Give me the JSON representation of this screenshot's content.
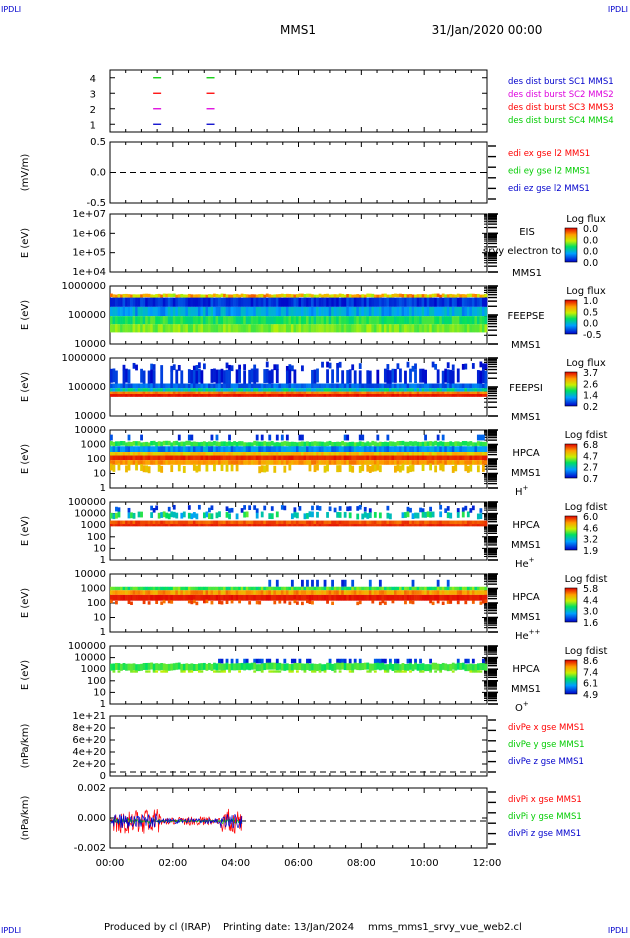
{
  "header": {
    "corner_label": "IPDLI",
    "mission": "MMS1",
    "date": "31/Jan/2020 00:00"
  },
  "footer": {
    "produced_by": "Produced by cl (IRAP)",
    "printing_date": "Printing date: 13/Jan/2024",
    "filename": "mms_mms1_srvy_vue_web2.cl"
  },
  "time_axis": {
    "ticks": [
      "00:00",
      "02:00",
      "04:00",
      "06:00",
      "08:00",
      "10:00",
      "12:00"
    ],
    "range_hours": [
      0,
      12
    ]
  },
  "colors": {
    "red": "#ff0000",
    "green": "#00cc00",
    "blue": "#0000cc",
    "magenta": "#dd00dd"
  },
  "chart_data": [
    {
      "id": "des-dist-burst",
      "type": "scatter",
      "ylim": [
        0.5,
        4.5
      ],
      "yticks": [
        "4",
        "3",
        "2",
        "1"
      ],
      "ylabel": "",
      "legend": [
        {
          "text": "des dist burst SC1 MMS1",
          "color": "#0000cc"
        },
        {
          "text": "des dist burst SC2 MMS2",
          "color": "#dd00dd"
        },
        {
          "text": "des dist burst SC3 MMS3",
          "color": "#ff0000"
        },
        {
          "text": "des dist burst SC4 MMS4",
          "color": "#00cc00"
        }
      ],
      "series": [
        {
          "y": 4,
          "color": "#00cc00",
          "x": [
            1.5,
            3.2
          ]
        },
        {
          "y": 3,
          "color": "#ff0000",
          "x": [
            1.5,
            3.2
          ]
        },
        {
          "y": 2,
          "color": "#dd00dd",
          "x": [
            1.5,
            3.2
          ]
        },
        {
          "y": 1,
          "color": "#0000cc",
          "x": [
            1.5,
            3.2
          ]
        }
      ]
    },
    {
      "id": "edi-e-field",
      "type": "line",
      "ylabel": "(mV/m)",
      "ylim": [
        -1,
        1
      ],
      "yticks": [
        "0.5",
        "0.0",
        "-0.5"
      ],
      "legend": [
        {
          "text": "edi ex gse l2 MMS1",
          "color": "#ff0000"
        },
        {
          "text": "edi ey gse l2 MMS1",
          "color": "#00cc00"
        },
        {
          "text": "edi ez gse l2 MMS1",
          "color": "#0000cc"
        }
      ]
    },
    {
      "id": "eis",
      "type": "heatmap",
      "ylabel": "E (eV)",
      "yticks": [
        "1e+07",
        "1e+06",
        "1e+05",
        "1e+04"
      ],
      "instrument": [
        "EIS",
        "MMS1"
      ],
      "overlay": "srvy electron to",
      "cb_label": "Log flux",
      "cb_ticks": [
        "0.0",
        "0.0",
        "0.0",
        "0.0"
      ]
    },
    {
      "id": "feepse",
      "type": "heatmap",
      "ylabel": "E (eV)",
      "yticks": [
        "1000000",
        "100000",
        "10000"
      ],
      "instrument": [
        "FEEPSE",
        "MMS1"
      ],
      "cb_label": "Log flux",
      "cb_ticks": [
        "1.0",
        "0.5",
        "0.0",
        "-0.5"
      ]
    },
    {
      "id": "feepsi",
      "type": "heatmap",
      "ylabel": "E (eV)",
      "yticks": [
        "1000000",
        "100000",
        "10000"
      ],
      "instrument": [
        "FEEPSI",
        "MMS1"
      ],
      "cb_label": "Log flux",
      "cb_ticks": [
        "3.7",
        "2.6",
        "1.4",
        "0.2"
      ]
    },
    {
      "id": "hpca-h",
      "type": "heatmap",
      "ylabel": "E (eV)",
      "yticks": [
        "10000",
        "1000",
        "100",
        "10",
        "1"
      ],
      "instrument": [
        "HPCA",
        "MMS1"
      ],
      "species": "H",
      "charge": "+",
      "cb_label": "Log fdist",
      "cb_ticks": [
        "6.8",
        "4.7",
        "2.7",
        "0.7"
      ]
    },
    {
      "id": "hpca-he1",
      "type": "heatmap",
      "ylabel": "E (eV)",
      "yticks": [
        "100000",
        "10000",
        "1000",
        "100",
        "10",
        "1"
      ],
      "instrument": [
        "HPCA",
        "MMS1"
      ],
      "species": "He",
      "charge": "+",
      "cb_label": "Log fdist",
      "cb_ticks": [
        "6.0",
        "4.6",
        "3.2",
        "1.9"
      ]
    },
    {
      "id": "hpca-he2",
      "type": "heatmap",
      "ylabel": "E (eV)",
      "yticks": [
        "10000",
        "1000",
        "100",
        "10",
        "1"
      ],
      "instrument": [
        "HPCA",
        "MMS1"
      ],
      "species": "He",
      "charge": "++",
      "cb_label": "Log fdist",
      "cb_ticks": [
        "5.8",
        "4.4",
        "3.0",
        "1.6"
      ]
    },
    {
      "id": "hpca-o",
      "type": "heatmap",
      "ylabel": "E (eV)",
      "yticks": [
        "100000",
        "10000",
        "1000",
        "100",
        "10",
        "1"
      ],
      "instrument": [
        "HPCA",
        "MMS1"
      ],
      "species": "O",
      "charge": "+",
      "cb_label": "Log fdist",
      "cb_ticks": [
        "8.6",
        "7.4",
        "6.1",
        "4.9"
      ]
    },
    {
      "id": "divpe",
      "type": "line",
      "ylabel": "(nPa/km)",
      "ylim": [
        -1e+20,
        1.1e+21
      ],
      "yticks": [
        "1e+21",
        "8e+20",
        "6e+20",
        "4e+20",
        "2e+20",
        "0"
      ],
      "legend": [
        {
          "text": "divPe x gse MMS1",
          "color": "#ff0000"
        },
        {
          "text": "divPe y gse MMS1",
          "color": "#00cc00"
        },
        {
          "text": "divPe z gse MMS1",
          "color": "#0000cc"
        }
      ]
    },
    {
      "id": "divpi",
      "type": "line",
      "ylabel": "(nPa/km)",
      "ylim": [
        -0.003,
        0.003
      ],
      "yticks": [
        "0.002",
        "0.000",
        "-0.002"
      ],
      "data_end_hours": 4.2,
      "legend": [
        {
          "text": "divPi x gse MMS1",
          "color": "#ff0000"
        },
        {
          "text": "divPi y gse MMS1",
          "color": "#00cc00"
        },
        {
          "text": "divPi z gse MMS1",
          "color": "#0000cc"
        }
      ]
    }
  ]
}
